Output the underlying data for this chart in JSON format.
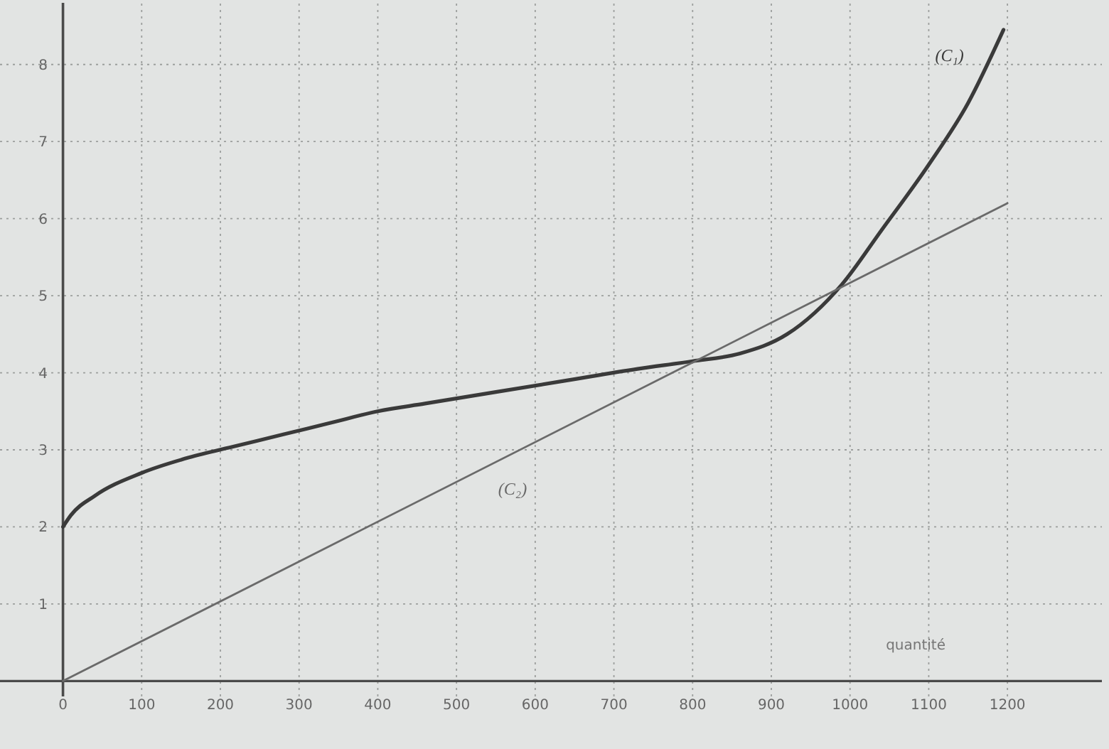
{
  "chart_data": {
    "type": "line",
    "xlabel": "quantité",
    "series": [
      {
        "name": "(C₁)",
        "color": "#3a3a3a",
        "x": [
          0,
          10,
          40,
          100,
          160,
          220,
          280,
          340,
          400,
          460,
          550,
          640,
          730,
          800,
          860,
          920,
          990,
          1040,
          1100,
          1150,
          1195
        ],
        "values": [
          2.0,
          2.15,
          2.4,
          2.7,
          2.9,
          3.05,
          3.2,
          3.35,
          3.5,
          3.6,
          3.75,
          3.9,
          4.05,
          4.15,
          4.25,
          4.5,
          5.15,
          5.85,
          6.7,
          7.5,
          8.45
        ]
      },
      {
        "name": "(C₂)",
        "color": "#6a6a6a",
        "x": [
          0,
          1200
        ],
        "values": [
          0,
          6.2
        ]
      }
    ],
    "xlim": [
      -80,
      1320
    ],
    "ylim": [
      -0.2,
      8.8
    ],
    "xticks": [
      0,
      100,
      200,
      300,
      400,
      500,
      600,
      700,
      800,
      900,
      1000,
      1100,
      1200
    ],
    "yticks": [
      1,
      2,
      3,
      4,
      5,
      6,
      7,
      8
    ],
    "grid": true
  }
}
